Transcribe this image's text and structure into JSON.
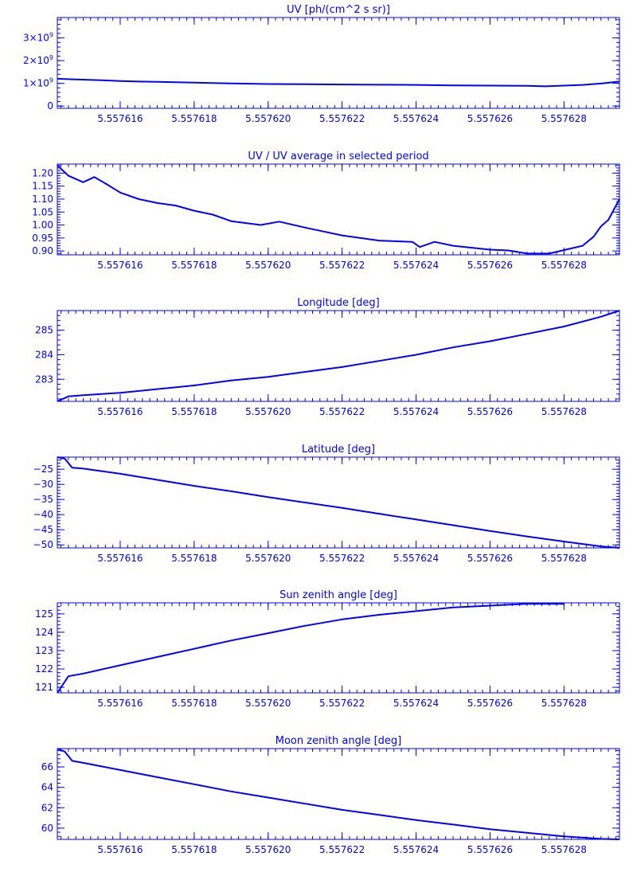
{
  "figure": {
    "color": "#0000ff",
    "background": "#ffffff",
    "x_ticks": [
      "5.557616",
      "5.557618",
      "5.557620",
      "5.557622",
      "5.557624",
      "5.557626",
      "5.557628"
    ]
  },
  "chart_data": [
    {
      "type": "line",
      "title": "UV [ph/(cm^2 s sr)]",
      "xlim": [
        5.5576143,
        5.5576295
      ],
      "ylim": [
        -100000000,
        3900000000
      ],
      "y_ticks": [
        {
          "value": 0,
          "label": "0",
          "base": "",
          "exp": ""
        },
        {
          "value": 1000000000,
          "label": "",
          "base": "1×10",
          "exp": "9"
        },
        {
          "value": 2000000000,
          "label": "",
          "base": "2×10",
          "exp": "9"
        },
        {
          "value": 3000000000,
          "label": "",
          "base": "3×10",
          "exp": "9"
        }
      ],
      "series": [
        {
          "x": [
            5.5576143,
            5.5576148,
            5.5576155,
            5.557616,
            5.5576165,
            5.557617,
            5.557618,
            5.557619,
            5.55762,
            5.557621,
            5.557622,
            5.557623,
            5.557624,
            5.557625,
            5.557626,
            5.557627,
            5.5576275,
            5.557628,
            5.5576285,
            5.557629,
            5.5576295
          ],
          "y": [
            1200000000,
            1170000000,
            1140000000,
            1100000000,
            1080000000,
            1070000000,
            1030000000,
            1000000000,
            970000000,
            960000000,
            950000000,
            940000000,
            930000000,
            910000000,
            900000000,
            890000000,
            870000000,
            900000000,
            930000000,
            990000000,
            1080000000
          ]
        }
      ]
    },
    {
      "type": "line",
      "title": "UV / UV average in selected period",
      "xlim": [
        5.5576143,
        5.5576295
      ],
      "ylim": [
        0.885,
        1.235
      ],
      "y_ticks": [
        {
          "value": 0.9,
          "label": "0.90"
        },
        {
          "value": 0.95,
          "label": "0.95"
        },
        {
          "value": 1.0,
          "label": "1.00"
        },
        {
          "value": 1.05,
          "label": "1.05"
        },
        {
          "value": 1.1,
          "label": "1.10"
        },
        {
          "value": 1.15,
          "label": "1.15"
        },
        {
          "value": 1.2,
          "label": "1.20"
        }
      ],
      "series": [
        {
          "x": [
            5.5576143,
            5.5576146,
            5.557615,
            5.5576153,
            5.5576156,
            5.557616,
            5.5576165,
            5.557617,
            5.5576175,
            5.557618,
            5.5576185,
            5.557619,
            5.5576198,
            5.5576203,
            5.557621,
            5.5576215,
            5.557622,
            5.557623,
            5.5576239,
            5.5576241,
            5.5576245,
            5.557625,
            5.557626,
            5.5576265,
            5.557627,
            5.5576276,
            5.5576285,
            5.5576288,
            5.557629,
            5.5576292,
            5.5576295
          ],
          "y": [
            1.23,
            1.19,
            1.165,
            1.185,
            1.16,
            1.125,
            1.1,
            1.085,
            1.075,
            1.055,
            1.04,
            1.015,
            1.0,
            1.013,
            0.99,
            0.975,
            0.96,
            0.94,
            0.935,
            0.915,
            0.935,
            0.92,
            0.905,
            0.902,
            0.89,
            0.89,
            0.92,
            0.955,
            0.995,
            1.02,
            1.1
          ]
        }
      ]
    },
    {
      "type": "line",
      "title": "Longitude [deg]",
      "xlim": [
        5.5576143,
        5.5576295
      ],
      "ylim": [
        282.1,
        285.8
      ],
      "y_ticks": [
        {
          "value": 283,
          "label": "283"
        },
        {
          "value": 284,
          "label": "284"
        },
        {
          "value": 285,
          "label": "285"
        }
      ],
      "series": [
        {
          "x": [
            5.5576143,
            5.5576146,
            5.557615,
            5.557616,
            5.557617,
            5.557618,
            5.557619,
            5.55762,
            5.557621,
            5.557622,
            5.557623,
            5.557624,
            5.557625,
            5.557626,
            5.557627,
            5.557628,
            5.557629,
            5.5576295
          ],
          "y": [
            282.1,
            282.3,
            282.35,
            282.45,
            282.6,
            282.75,
            282.95,
            283.1,
            283.3,
            283.5,
            283.75,
            284.0,
            284.3,
            284.55,
            284.85,
            285.15,
            285.55,
            285.8
          ]
        }
      ]
    },
    {
      "type": "line",
      "title": "Latitude [deg]",
      "xlim": [
        5.5576143,
        5.5576295
      ],
      "ylim": [
        -51,
        -21
      ],
      "y_ticks": [
        {
          "value": -50,
          "label": "−50"
        },
        {
          "value": -45,
          "label": "−45"
        },
        {
          "value": -40,
          "label": "−40"
        },
        {
          "value": -35,
          "label": "−35"
        },
        {
          "value": -30,
          "label": "−30"
        },
        {
          "value": -25,
          "label": "−25"
        }
      ],
      "series": [
        {
          "x": [
            5.5576143,
            5.5576145,
            5.5576147,
            5.557615,
            5.557616,
            5.557617,
            5.557618,
            5.557619,
            5.55762,
            5.557621,
            5.557622,
            5.557623,
            5.557624,
            5.557625,
            5.557626,
            5.557627,
            5.557628,
            5.557629,
            5.5576295
          ],
          "y": [
            -21,
            -21.5,
            -24.5,
            -24.8,
            -26.5,
            -28.5,
            -30.5,
            -32.3,
            -34.2,
            -36,
            -37.8,
            -39.7,
            -41.6,
            -43.5,
            -45.4,
            -47.2,
            -48.9,
            -50.5,
            -51
          ]
        }
      ]
    },
    {
      "type": "line",
      "title": "Sun zenith angle [deg]",
      "xlim": [
        5.5576143,
        5.5576295
      ],
      "ylim": [
        120.7,
        125.6
      ],
      "y_ticks": [
        {
          "value": 121,
          "label": "121"
        },
        {
          "value": 122,
          "label": "122"
        },
        {
          "value": 123,
          "label": "123"
        },
        {
          "value": 124,
          "label": "124"
        },
        {
          "value": 125,
          "label": "125"
        }
      ],
      "series": [
        {
          "x": [
            5.5576143,
            5.5576146,
            5.557615,
            5.557616,
            5.557617,
            5.557618,
            5.557619,
            5.55762,
            5.557621,
            5.557622,
            5.557623,
            5.557624,
            5.557625,
            5.557626,
            5.557627,
            5.557628
          ],
          "y": [
            120.7,
            121.6,
            121.75,
            122.2,
            122.65,
            123.1,
            123.55,
            123.95,
            124.35,
            124.7,
            124.95,
            125.15,
            125.35,
            125.45,
            125.55,
            125.55
          ]
        }
      ]
    },
    {
      "type": "line",
      "title": "Moon zenith angle [deg]",
      "xlim": [
        5.5576143,
        5.5576295
      ],
      "ylim": [
        58.9,
        67.8
      ],
      "y_ticks": [
        {
          "value": 60,
          "label": "60"
        },
        {
          "value": 62,
          "label": "62"
        },
        {
          "value": 64,
          "label": "64"
        },
        {
          "value": 66,
          "label": "66"
        }
      ],
      "series": [
        {
          "x": [
            5.5576143,
            5.5576145,
            5.5576147,
            5.557615,
            5.557616,
            5.557617,
            5.557618,
            5.557619,
            5.55762,
            5.557621,
            5.557622,
            5.557623,
            5.557624,
            5.557625,
            5.557626,
            5.557627,
            5.557628,
            5.557629,
            5.5576295
          ],
          "y": [
            67.8,
            67.5,
            66.6,
            66.4,
            65.7,
            65.0,
            64.3,
            63.6,
            63.0,
            62.4,
            61.8,
            61.3,
            60.8,
            60.35,
            59.9,
            59.55,
            59.2,
            58.95,
            58.9
          ]
        }
      ]
    }
  ]
}
